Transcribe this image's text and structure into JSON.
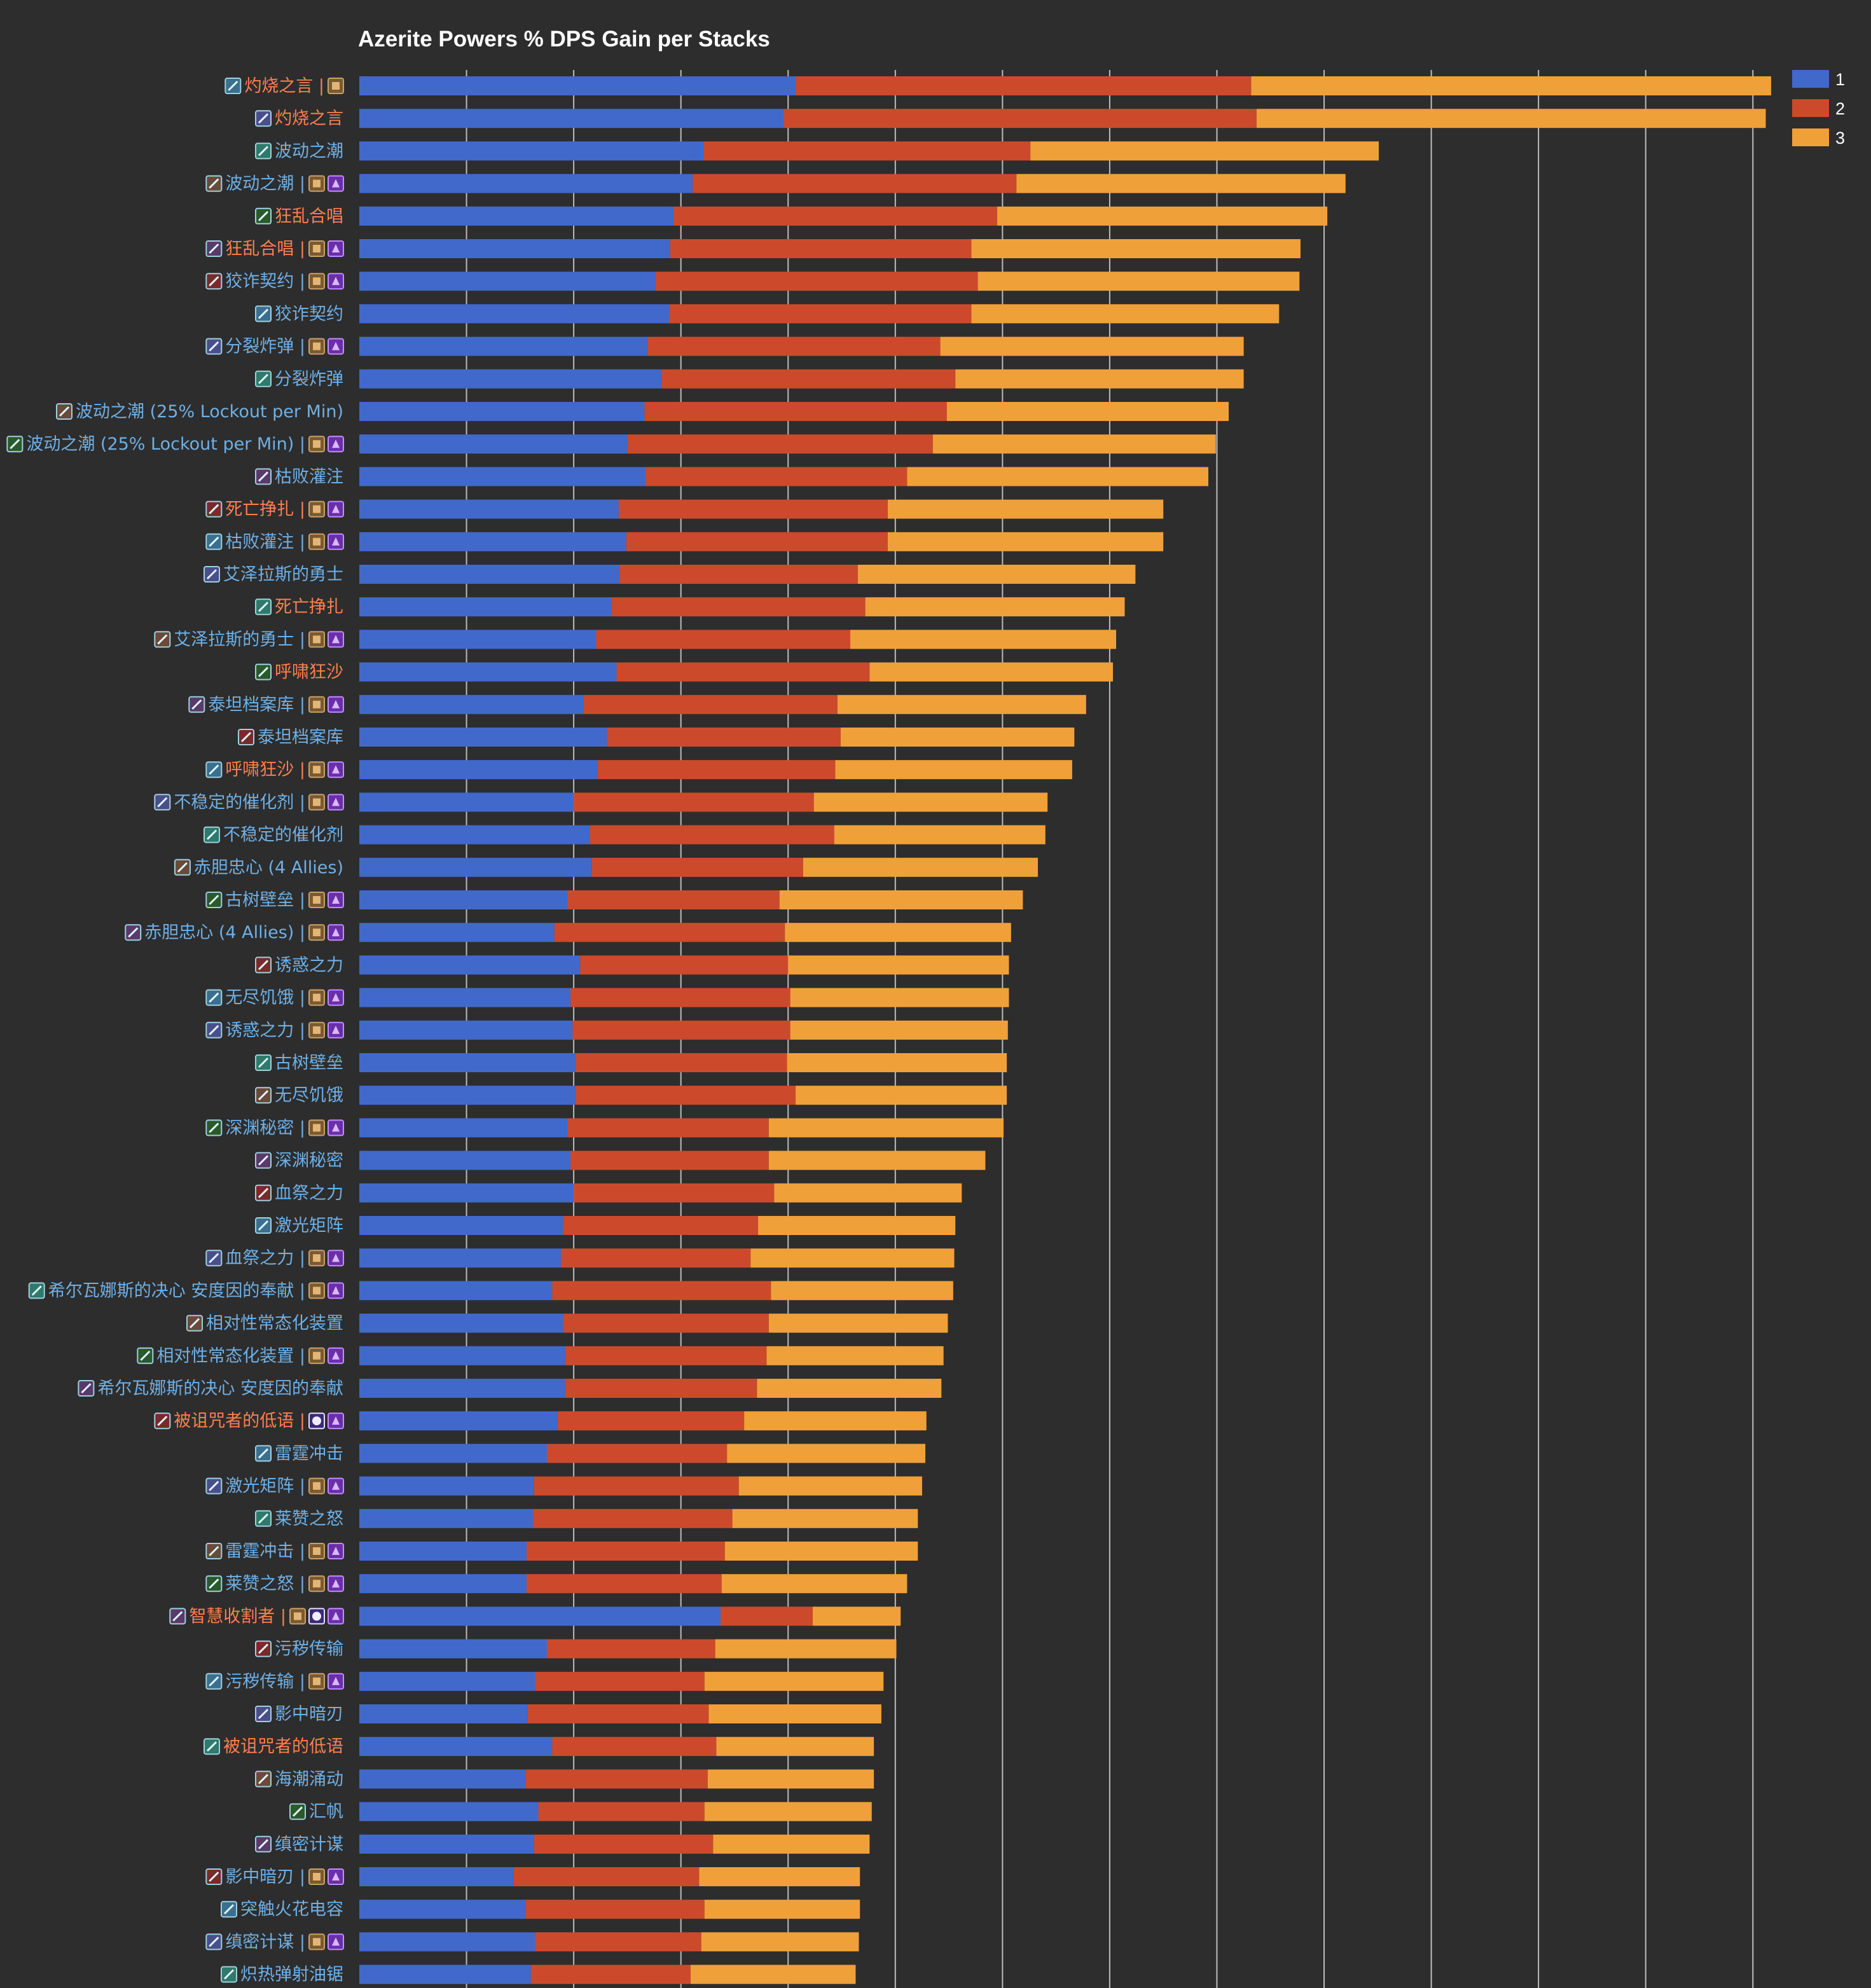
{
  "chart_data": {
    "type": "bar",
    "orientation": "horizontal",
    "stacked": true,
    "title": "Azerite Powers % DPS Gain per Stacks",
    "xlim": [
      0,
      1.32
    ],
    "grid": true,
    "legend_position": "top-right",
    "series": [
      {
        "name": "1",
        "color": "#4169cc"
      },
      {
        "name": "2",
        "color": "#cc4a2b"
      },
      {
        "name": "3",
        "color": "#f0a039"
      }
    ],
    "category_colors": {
      "blue": "#6fb0e6",
      "orange": "#ff7f50"
    },
    "icon_names": {
      "sep": "separator-icon",
      "bronze": "bronze-essence-icon",
      "purple": "purple-essence-icon",
      "orb": "orb-essence-icon"
    },
    "bars": [
      {
        "label": "灼烧之言 |",
        "color": "orange",
        "icons": [
          "bronze"
        ],
        "values": [
          0.407,
          0.425,
          0.485
        ]
      },
      {
        "label": "灼烧之言",
        "color": "orange",
        "icons": [],
        "values": [
          0.396,
          0.441,
          0.475
        ]
      },
      {
        "label": "波动之潮",
        "color": "blue",
        "icons": [],
        "values": [
          0.321,
          0.305,
          0.325
        ]
      },
      {
        "label": "波动之潮 |",
        "color": "blue",
        "icons": [
          "bronze",
          "purple"
        ],
        "values": [
          0.311,
          0.302,
          0.307
        ]
      },
      {
        "label": "狂乱合唱",
        "color": "orange",
        "icons": [],
        "values": [
          0.293,
          0.302,
          0.308
        ]
      },
      {
        "label": "狂乱合唱 |",
        "color": "orange",
        "icons": [
          "bronze",
          "purple"
        ],
        "values": [
          0.29,
          0.281,
          0.307
        ]
      },
      {
        "label": "狡诈契约 |",
        "color": "blue",
        "icons": [
          "bronze",
          "purple"
        ],
        "values": [
          0.276,
          0.301,
          0.3
        ]
      },
      {
        "label": "狡诈契约",
        "color": "blue",
        "icons": [],
        "values": [
          0.289,
          0.282,
          0.287
        ]
      },
      {
        "label": "分裂炸弹 |",
        "color": "blue",
        "icons": [
          "bronze",
          "purple"
        ],
        "values": [
          0.269,
          0.273,
          0.283
        ]
      },
      {
        "label": "分裂炸弹",
        "color": "blue",
        "icons": [],
        "values": [
          0.282,
          0.274,
          0.269
        ]
      },
      {
        "label": "波动之潮 (25% Lockout per Min)",
        "color": "blue",
        "icons": [],
        "values": [
          0.266,
          0.282,
          0.263
        ]
      },
      {
        "label": "波动之潮 (25% Lockout per Min) |",
        "color": "blue",
        "icons": [
          "bronze",
          "purple"
        ],
        "values": [
          0.25,
          0.285,
          0.264
        ]
      },
      {
        "label": "枯败灌注",
        "color": "blue",
        "icons": [],
        "values": [
          0.267,
          0.244,
          0.281
        ]
      },
      {
        "label": "死亡挣扎 |",
        "color": "orange",
        "icons": [
          "bronze",
          "purple"
        ],
        "values": [
          0.242,
          0.251,
          0.257
        ]
      },
      {
        "label": "枯败灌注 |",
        "color": "blue",
        "icons": [
          "bronze",
          "purple"
        ],
        "values": [
          0.249,
          0.244,
          0.257
        ]
      },
      {
        "label": "艾泽拉斯的勇士",
        "color": "blue",
        "icons": [],
        "values": [
          0.243,
          0.222,
          0.259
        ]
      },
      {
        "label": "死亡挣扎",
        "color": "orange",
        "icons": [],
        "values": [
          0.235,
          0.237,
          0.242
        ]
      },
      {
        "label": "艾泽拉斯的勇士 |",
        "color": "blue",
        "icons": [
          "bronze",
          "purple"
        ],
        "values": [
          0.221,
          0.237,
          0.248
        ]
      },
      {
        "label": "呼啸狂沙",
        "color": "orange",
        "icons": [],
        "values": [
          0.24,
          0.236,
          0.227
        ]
      },
      {
        "label": "泰坦档案库 |",
        "color": "blue",
        "icons": [
          "bronze",
          "purple"
        ],
        "values": [
          0.209,
          0.237,
          0.232
        ]
      },
      {
        "label": "泰坦档案库",
        "color": "blue",
        "icons": [],
        "values": [
          0.231,
          0.218,
          0.218
        ]
      },
      {
        "label": "呼啸狂沙 |",
        "color": "orange",
        "icons": [
          "bronze",
          "purple"
        ],
        "values": [
          0.222,
          0.222,
          0.221
        ]
      },
      {
        "label": "不稳定的催化剂 |",
        "color": "blue",
        "icons": [
          "bronze",
          "purple"
        ],
        "values": [
          0.2,
          0.224,
          0.218
        ]
      },
      {
        "label": "不稳定的催化剂",
        "color": "blue",
        "icons": [],
        "values": [
          0.215,
          0.228,
          0.197
        ]
      },
      {
        "label": "赤胆忠心 (4 Allies)",
        "color": "blue",
        "icons": [],
        "values": [
          0.217,
          0.197,
          0.219
        ]
      },
      {
        "label": "古树壁垒 |",
        "color": "blue",
        "icons": [
          "bronze",
          "purple"
        ],
        "values": [
          0.194,
          0.198,
          0.227
        ]
      },
      {
        "label": "赤胆忠心 (4 Allies) |",
        "color": "blue",
        "icons": [
          "bronze",
          "purple"
        ],
        "values": [
          0.182,
          0.215,
          0.211
        ]
      },
      {
        "label": "诱惑之力",
        "color": "blue",
        "icons": [],
        "values": [
          0.206,
          0.194,
          0.206
        ]
      },
      {
        "label": "无尽饥饿 |",
        "color": "blue",
        "icons": [
          "bronze",
          "purple"
        ],
        "values": [
          0.197,
          0.205,
          0.204
        ]
      },
      {
        "label": "诱惑之力 |",
        "color": "blue",
        "icons": [
          "bronze",
          "purple"
        ],
        "values": [
          0.199,
          0.203,
          0.203
        ]
      },
      {
        "label": "古树壁垒",
        "color": "blue",
        "icons": [],
        "values": [
          0.202,
          0.197,
          0.205
        ]
      },
      {
        "label": "无尽饥饿",
        "color": "blue",
        "icons": [],
        "values": [
          0.202,
          0.205,
          0.197
        ]
      },
      {
        "label": "深渊秘密 |",
        "color": "blue",
        "icons": [
          "bronze",
          "purple"
        ],
        "values": [
          0.194,
          0.188,
          0.219
        ]
      },
      {
        "label": "深渊秘密",
        "color": "blue",
        "icons": [],
        "values": [
          0.197,
          0.185,
          0.202
        ]
      },
      {
        "label": "血祭之力",
        "color": "blue",
        "icons": [],
        "values": [
          0.2,
          0.187,
          0.175
        ]
      },
      {
        "label": "激光矩阵",
        "color": "blue",
        "icons": [],
        "values": [
          0.19,
          0.182,
          0.184
        ]
      },
      {
        "label": "血祭之力 |",
        "color": "blue",
        "icons": [
          "bronze",
          "purple"
        ],
        "values": [
          0.188,
          0.177,
          0.19
        ]
      },
      {
        "label": "希尔瓦娜斯的决心 安度因的奉献 |",
        "color": "blue",
        "icons": [
          "bronze",
          "purple"
        ],
        "values": [
          0.18,
          0.204,
          0.17
        ]
      },
      {
        "label": "相对性常态化装置",
        "color": "blue",
        "icons": [],
        "values": [
          0.19,
          0.192,
          0.167
        ]
      },
      {
        "label": "相对性常态化装置 |",
        "color": "blue",
        "icons": [
          "bronze",
          "purple"
        ],
        "values": [
          0.192,
          0.188,
          0.165
        ]
      },
      {
        "label": "希尔瓦娜斯的决心 安度因的奉献",
        "color": "blue",
        "icons": [],
        "values": [
          0.192,
          0.179,
          0.172
        ]
      },
      {
        "label": "被诅咒者的低语 |",
        "color": "orange",
        "icons": [
          "orb",
          "purple"
        ],
        "values": [
          0.185,
          0.174,
          0.17
        ]
      },
      {
        "label": "雷霆冲击",
        "color": "blue",
        "icons": [],
        "values": [
          0.175,
          0.168,
          0.185
        ]
      },
      {
        "label": "激光矩阵 |",
        "color": "blue",
        "icons": [
          "bronze",
          "purple"
        ],
        "values": [
          0.163,
          0.191,
          0.171
        ]
      },
      {
        "label": "莱赞之怒",
        "color": "blue",
        "icons": [],
        "values": [
          0.162,
          0.186,
          0.173
        ]
      },
      {
        "label": "雷霆冲击 |",
        "color": "blue",
        "icons": [
          "bronze",
          "purple"
        ],
        "values": [
          0.156,
          0.185,
          0.18
        ]
      },
      {
        "label": "莱赞之怒 |",
        "color": "blue",
        "icons": [
          "bronze",
          "purple"
        ],
        "values": [
          0.156,
          0.182,
          0.173
        ]
      },
      {
        "label": "智慧收割者 |",
        "color": "orange",
        "icons": [
          "bronze",
          "orb",
          "purple"
        ],
        "values": [
          0.337,
          0.086,
          0.082
        ]
      },
      {
        "label": "污秽传输",
        "color": "blue",
        "icons": [],
        "values": [
          0.175,
          0.157,
          0.169
        ]
      },
      {
        "label": "污秽传输 |",
        "color": "blue",
        "icons": [
          "bronze",
          "purple"
        ],
        "values": [
          0.164,
          0.158,
          0.167
        ]
      },
      {
        "label": "影中暗刃",
        "color": "blue",
        "icons": [],
        "values": [
          0.157,
          0.169,
          0.161
        ]
      },
      {
        "label": "被诅咒者的低语",
        "color": "orange",
        "icons": [],
        "values": [
          0.18,
          0.153,
          0.147
        ]
      },
      {
        "label": "海潮涌动",
        "color": "blue",
        "icons": [],
        "values": [
          0.155,
          0.17,
          0.155
        ]
      },
      {
        "label": "汇帆",
        "color": "blue",
        "icons": [],
        "values": [
          0.167,
          0.155,
          0.156
        ]
      },
      {
        "label": "缜密计谋",
        "color": "blue",
        "icons": [],
        "values": [
          0.163,
          0.167,
          0.146
        ]
      },
      {
        "label": "影中暗刃 |",
        "color": "blue",
        "icons": [
          "bronze",
          "purple"
        ],
        "values": [
          0.144,
          0.173,
          0.15
        ]
      },
      {
        "label": "突触火花电容",
        "color": "blue",
        "icons": [],
        "values": [
          0.155,
          0.167,
          0.145
        ]
      },
      {
        "label": "缜密计谋 |",
        "color": "blue",
        "icons": [
          "bronze",
          "purple"
        ],
        "values": [
          0.164,
          0.155,
          0.147
        ]
      },
      {
        "label": "炽热弹射油锯",
        "color": "blue",
        "icons": [],
        "values": [
          0.16,
          0.149,
          0.154
        ]
      }
    ]
  }
}
